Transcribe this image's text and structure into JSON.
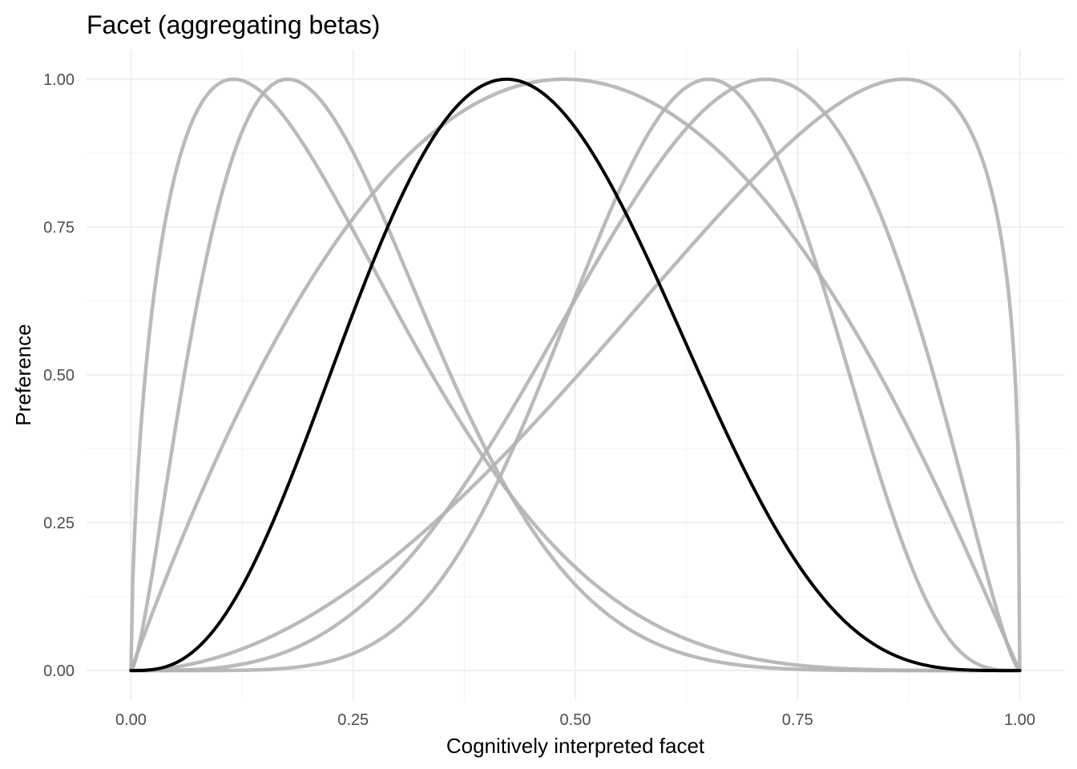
{
  "chart_data": {
    "type": "line",
    "title": "Facet (aggregating betas)",
    "xlabel": "Cognitively interpreted facet",
    "ylabel": "Preference",
    "xlim": [
      -0.05,
      1.05
    ],
    "ylim": [
      -0.05,
      1.05
    ],
    "x_ticks": [
      0.0,
      0.25,
      0.5,
      0.75,
      1.0
    ],
    "x_tick_labels": [
      "0.00",
      "0.25",
      "0.50",
      "0.75",
      "1.00"
    ],
    "y_ticks": [
      0.0,
      0.25,
      0.5,
      0.75,
      1.0
    ],
    "y_tick_labels": [
      "0.00",
      "0.25",
      "0.50",
      "0.75",
      "1.00"
    ],
    "grid": true,
    "legend": "none",
    "curve_shape": "scaled beta density (peak = 1)",
    "series": [
      {
        "alpha": 1.6,
        "beta": 5.6,
        "peak_x": 0.115,
        "color": "#b3b3b3"
      },
      {
        "alpha": 2.5,
        "beta": 8.0,
        "peak_x": 0.18,
        "color": "#b3b3b3"
      },
      {
        "alpha": 2.0,
        "beta": 2.05,
        "peak_x": 0.49,
        "color": "#b3b3b3"
      },
      {
        "alpha": 7.5,
        "beta": 4.5,
        "peak_x": 0.65,
        "color": "#b3b3b3"
      },
      {
        "alpha": 4.5,
        "beta": 2.4,
        "peak_x": 0.715,
        "color": "#b3b3b3"
      },
      {
        "alpha": 3.0,
        "beta": 1.3,
        "peak_x": 0.87,
        "color": "#b3b3b3"
      },
      {
        "alpha": 4.0,
        "beta": 5.1,
        "peak_x": 0.425,
        "color": "#000000"
      }
    ]
  }
}
